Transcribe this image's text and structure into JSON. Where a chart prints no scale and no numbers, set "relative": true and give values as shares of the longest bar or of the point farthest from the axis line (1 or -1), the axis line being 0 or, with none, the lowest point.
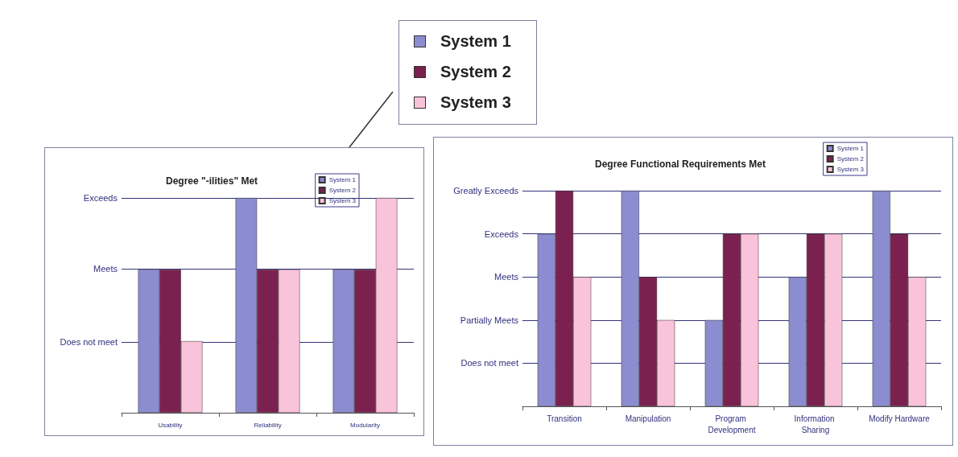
{
  "chart_data": [
    {
      "type": "other",
      "annotations": [
        "System 1",
        "System 2",
        "System 3"
      ],
      "colors": [
        "#8c8cd0",
        "#7b2150",
        "#f9c3da"
      ]
    },
    {
      "type": "bar",
      "title": "Degree \"-ilities\" Met",
      "categories": [
        "Usability",
        "Reliability",
        "Modularity"
      ],
      "relative": true,
      "series": [
        {
          "name": "System 1",
          "color": "#8c8cd0",
          "values": [
            0.667,
            1,
            0.667
          ]
        },
        {
          "name": "System 2",
          "color": "#7b2150",
          "values": [
            0.667,
            0.667,
            0.667
          ]
        },
        {
          "name": "System 3",
          "color": "#f9c3da",
          "values": [
            0.333,
            0.667,
            1
          ]
        }
      ],
      "ref_lines": [
        {
          "axis": "y",
          "value": 0.333,
          "label": "Does not meet"
        },
        {
          "axis": "y",
          "value": 0.667,
          "label": "Meets"
        },
        {
          "axis": "y",
          "value": 1,
          "label": "Exceeds"
        }
      ],
      "legend": "top right"
    },
    {
      "type": "bar",
      "title": "Degree Functional Requirements Met",
      "categories": [
        "Transition",
        "Manipulation",
        "Program Development",
        "Information Sharing",
        "Modify Hardware"
      ],
      "relative": true,
      "series": [
        {
          "name": "System 1",
          "color": "#8c8cd0",
          "values": [
            0.8,
            1,
            0.4,
            0.6,
            1
          ]
        },
        {
          "name": "System 2",
          "color": "#7b2150",
          "values": [
            1,
            0.6,
            0.8,
            0.8,
            0.8
          ]
        },
        {
          "name": "System 3",
          "color": "#f9c3da",
          "values": [
            0.6,
            0.4,
            0.8,
            0.8,
            0.6
          ]
        }
      ],
      "ref_lines": [
        {
          "axis": "y",
          "value": 0.2,
          "label": "Does not meet"
        },
        {
          "axis": "y",
          "value": 0.4,
          "label": "Partially Meets"
        },
        {
          "axis": "y",
          "value": 0.6,
          "label": "Meets"
        },
        {
          "axis": "y",
          "value": 0.8,
          "label": "Exceeds"
        },
        {
          "axis": "y",
          "value": 1,
          "label": "Greatly Exceeds"
        }
      ],
      "legend": "top right"
    }
  ]
}
